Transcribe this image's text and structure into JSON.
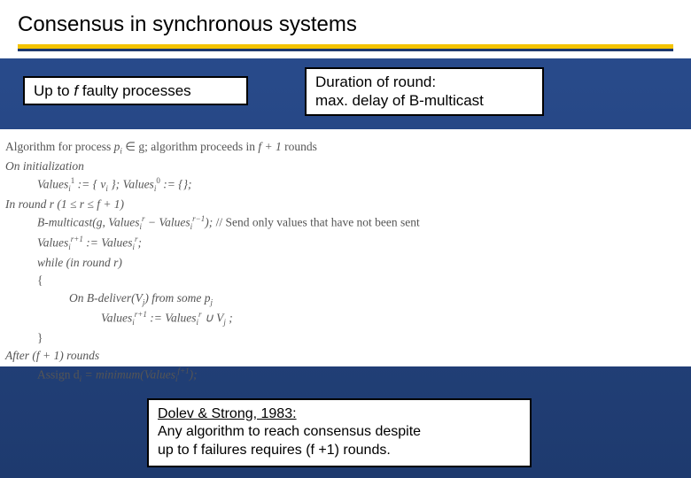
{
  "title": "Consensus in synchronous systems",
  "box_left": {
    "pre": "Up to ",
    "var": "f",
    "post": " faulty processes"
  },
  "box_right": {
    "line1": "Duration of round:",
    "line2": "max. delay of B-multicast"
  },
  "algo": {
    "l1_a": "Algorithm for process ",
    "l1_b": "p",
    "l1_sub": "i",
    "l1_c": " ∈ g; algorithm proceeds in ",
    "l1_d": "f + 1",
    "l1_e": " rounds",
    "l2": "On initialization",
    "l3": "Values",
    "l3_sub": "i",
    "l3_sup1": "1",
    "l3_mid": " := { v",
    "l3_vi": "i",
    "l3_mid2": " }; ",
    "l3_b": "Values",
    "l3_sup0": "0",
    "l3_tail": " := {};",
    "l4_a": "In round r (1 ≤ r ≤ f + 1)",
    "l5_a": "B-multicast(g, Values",
    "l5_mid": " − Values",
    "l5_sup_rm1": "r−1",
    "l5_tail": "); ",
    "l5_comment": "// Send only values that have not been sent",
    "l6": "Values",
    "l6_sup": "r+1",
    "l6_mid": " := Values",
    "l6_r": "r",
    "l6_tail": ";",
    "l7": "while (in round r)",
    "l8": "{",
    "l9_a": "On B-deliver(V",
    "l9_j": "j",
    "l9_b": ") from some ",
    "l9_p": "p",
    "l10": "Values",
    "l10_mid": " := Values",
    "l10_cup": " ∪ V",
    "l10_tail": " ;",
    "l11": "}",
    "l12_a": "After (f + 1) rounds",
    "l13_a": "Assign d",
    "l13_mid": " = minimum(Values",
    "l13_sup": "f+1",
    "l13_tail": ");"
  },
  "bottom": {
    "ref": "Dolev & Strong, 1983:",
    "line2": "Any algorithm to reach consensus despite",
    "line3": "up to f failures requires (f +1) rounds."
  },
  "colors": {
    "bg_top": "#2a4d8f",
    "bg_bottom": "#1e3a6e",
    "accent": "#f4c400",
    "text_grey": "#555555"
  }
}
